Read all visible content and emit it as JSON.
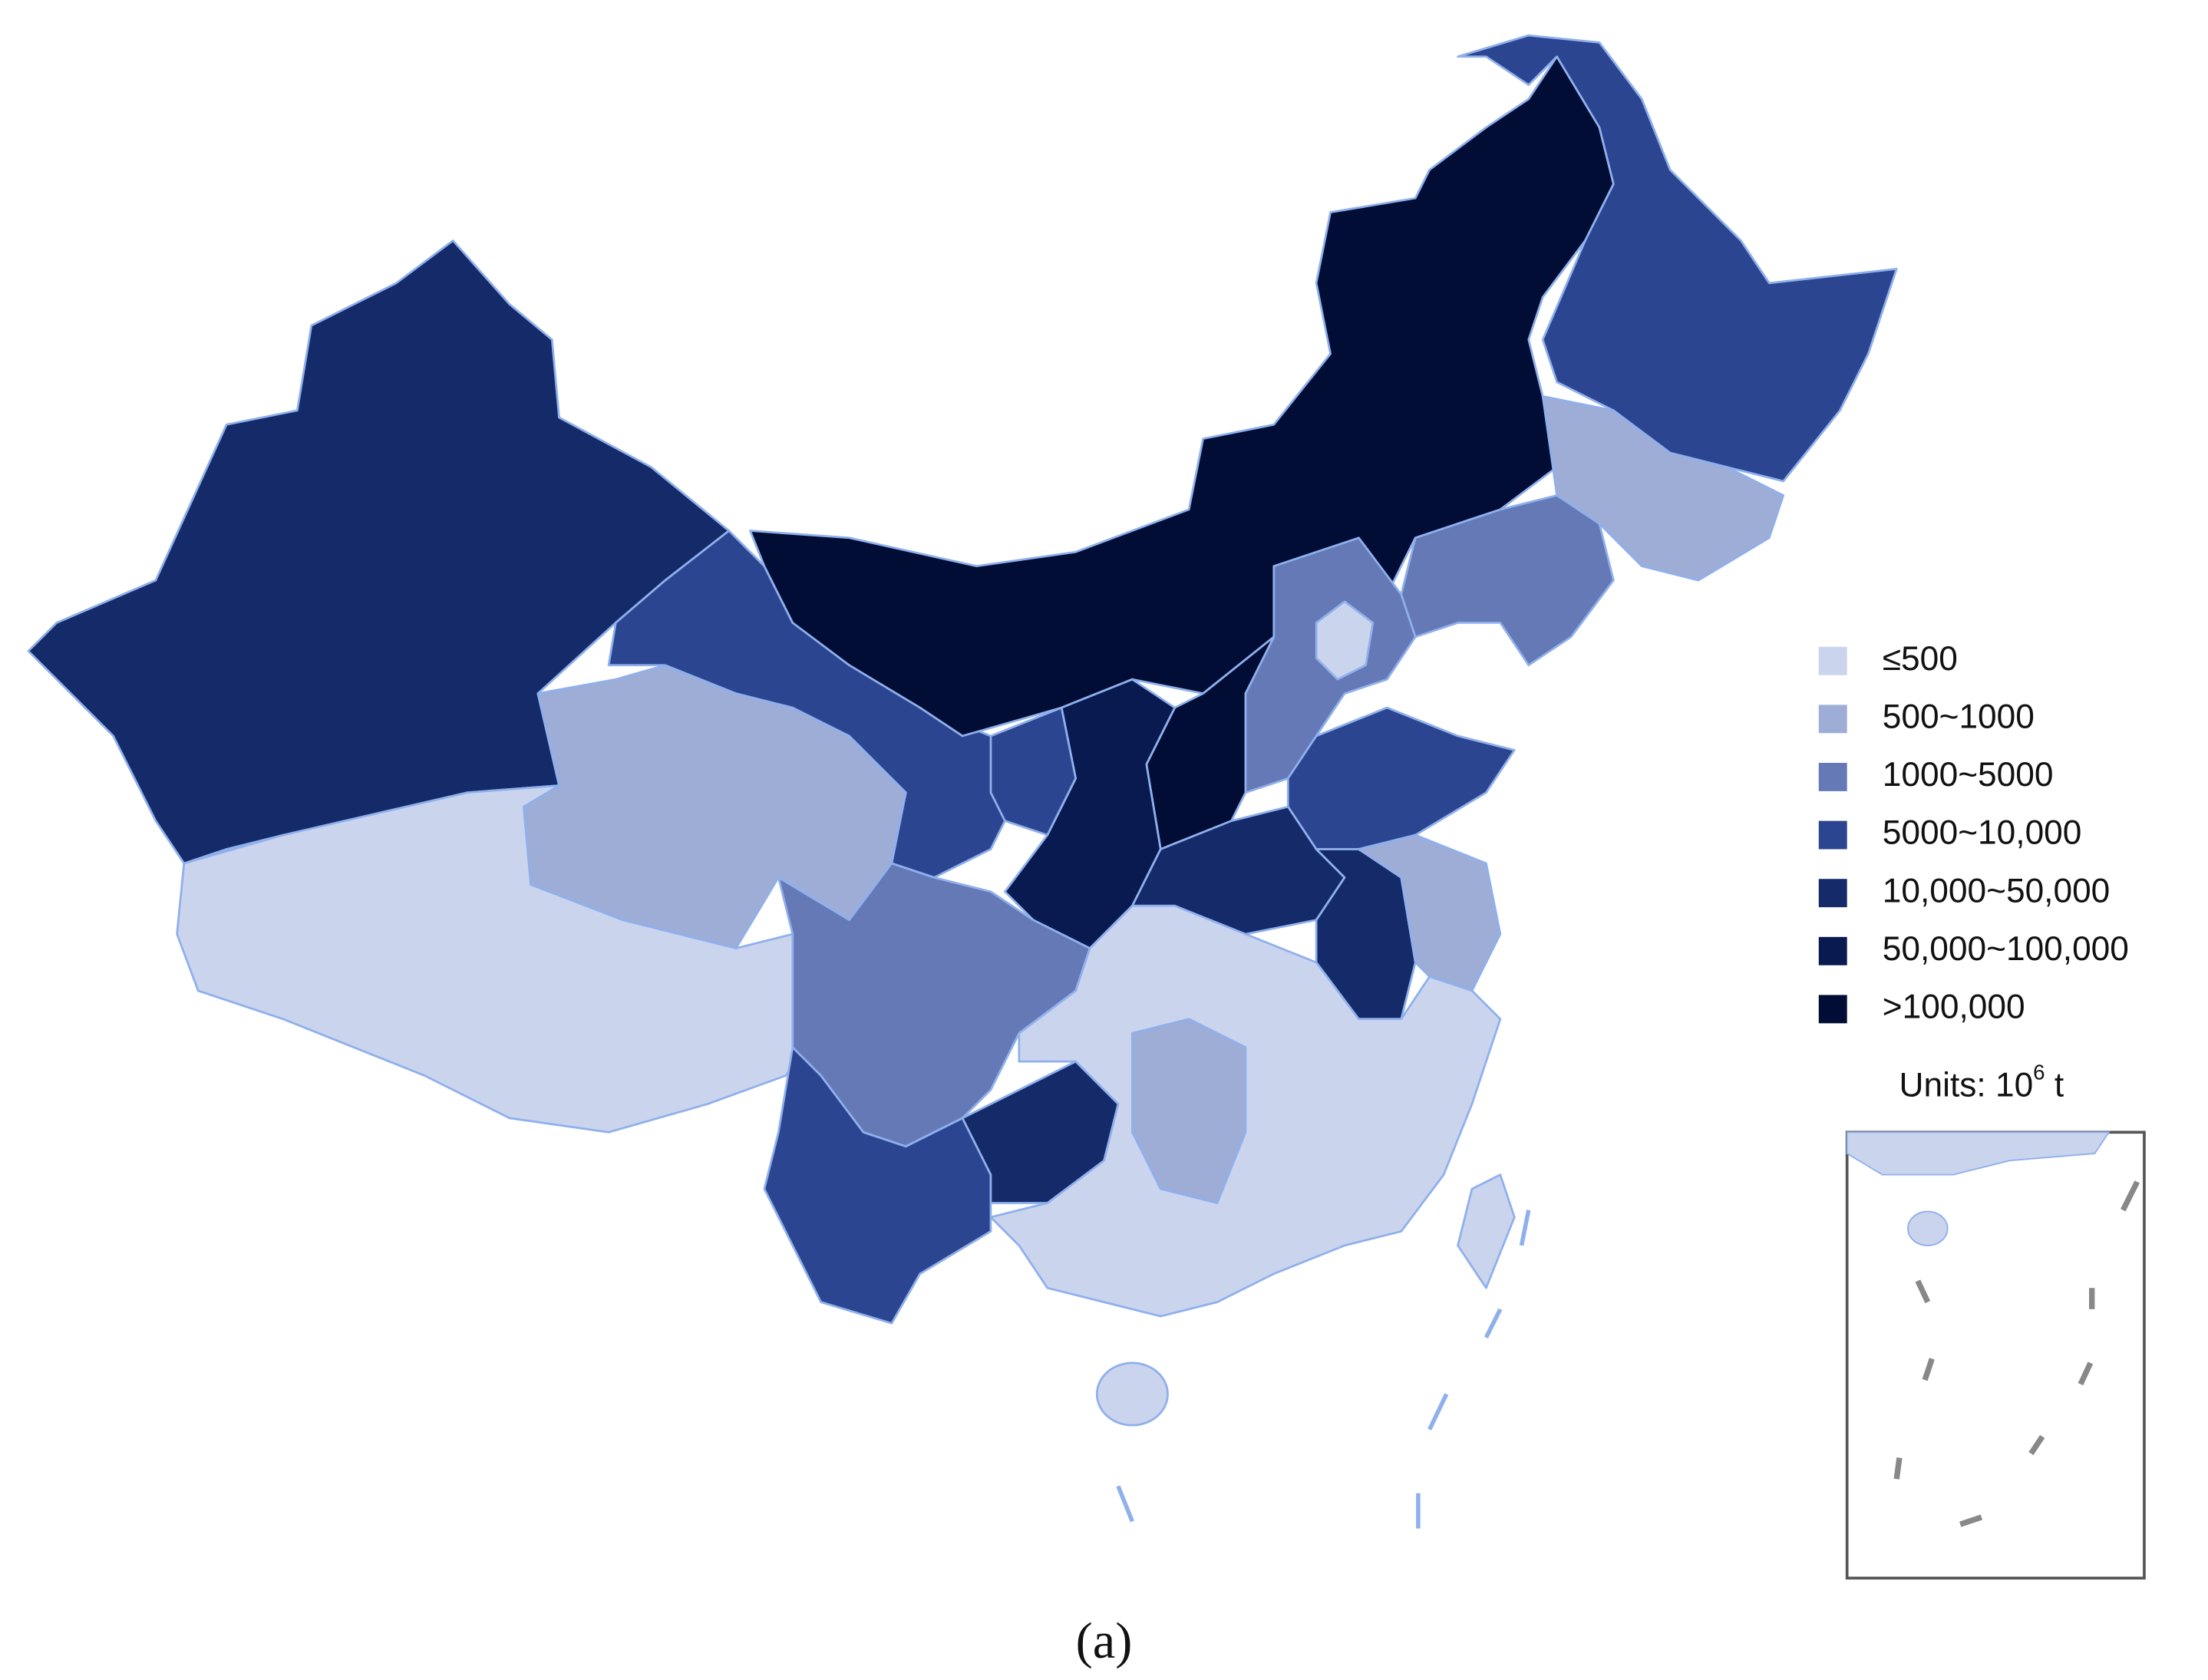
{
  "legend": {
    "items": [
      {
        "label": "≤500",
        "color": "#cbd4ed"
      },
      {
        "label": "500~1000",
        "color": "#9eadd6"
      },
      {
        "label": "1000~5000",
        "color": "#6479b6"
      },
      {
        "label": "5000~10,000",
        "color": "#2c4590"
      },
      {
        "label": "10,000~50,000",
        "color": "#142a69"
      },
      {
        "label": "50,000~100,000",
        "color": "#081a50"
      },
      {
        "label": ">100,000",
        "color": "#020d35"
      }
    ],
    "units": {
      "text": "Units: 10",
      "exponent": "6",
      "suffix": " t"
    }
  },
  "caption": "(a)"
}
